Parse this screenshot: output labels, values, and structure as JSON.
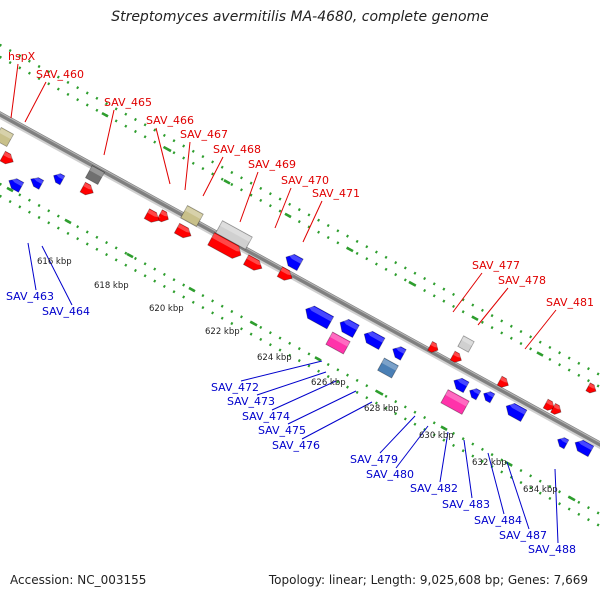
{
  "title": "Streptomyces avermitilis MA-4680, complete genome",
  "footer": {
    "accession": "Accession: NC_003155",
    "summary": "Topology: linear; Length: 9,025,608 bp; Genes: 7,669"
  },
  "colors": {
    "label_top": "#e00000",
    "label_bottom": "#0000cc",
    "backbone": "#808080",
    "track_dots": "#2e9e2e",
    "red": "#ff0000",
    "blue": "#0000ff",
    "khaki": "#c8c08a",
    "gray": "#707070",
    "lightgray": "#d0d0d0",
    "pink": "#ff33aa",
    "steel": "#4a7fb5"
  },
  "ticks": [
    "616 kbp",
    "618 kbp",
    "620 kbp",
    "622 kbp",
    "624 kbp",
    "626 kbp",
    "628 kbp",
    "630 kbp",
    "632 kbp",
    "634 kbp"
  ],
  "genes_top": [
    {
      "label": "hspX",
      "color": "khaki"
    },
    {
      "label": "SAV_460",
      "color": "red"
    },
    {
      "label": "SAV_465",
      "color": "gray"
    },
    {
      "label": "SAV_466",
      "color": "red"
    },
    {
      "label": "SAV_467",
      "color": "khaki"
    },
    {
      "label": "SAV_468",
      "color": "red"
    },
    {
      "label": "SAV_469",
      "color": "lightgray"
    },
    {
      "label": "SAV_470",
      "color": "red"
    },
    {
      "label": "SAV_471",
      "color": "blue"
    },
    {
      "label": "SAV_477",
      "color": "red"
    },
    {
      "label": "SAV_478",
      "color": "lightgray"
    },
    {
      "label": "SAV_481",
      "color": "red"
    }
  ],
  "genes_bottom": [
    {
      "label": "SAV_463",
      "color": "blue"
    },
    {
      "label": "SAV_464",
      "color": "blue"
    },
    {
      "label": "SAV_472",
      "color": "pink"
    },
    {
      "label": "SAV_473",
      "color": "blue"
    },
    {
      "label": "SAV_474",
      "color": "blue"
    },
    {
      "label": "SAV_475",
      "color": "steel"
    },
    {
      "label": "SAV_476",
      "color": "blue"
    },
    {
      "label": "SAV_479",
      "color": "pink"
    },
    {
      "label": "SAV_480",
      "color": "blue"
    },
    {
      "label": "SAV_482",
      "color": "blue"
    },
    {
      "label": "SAV_483",
      "color": "blue"
    },
    {
      "label": "SAV_484",
      "color": "blue"
    },
    {
      "label": "SAV_487",
      "color": "blue"
    },
    {
      "label": "SAV_488",
      "color": "blue"
    }
  ]
}
